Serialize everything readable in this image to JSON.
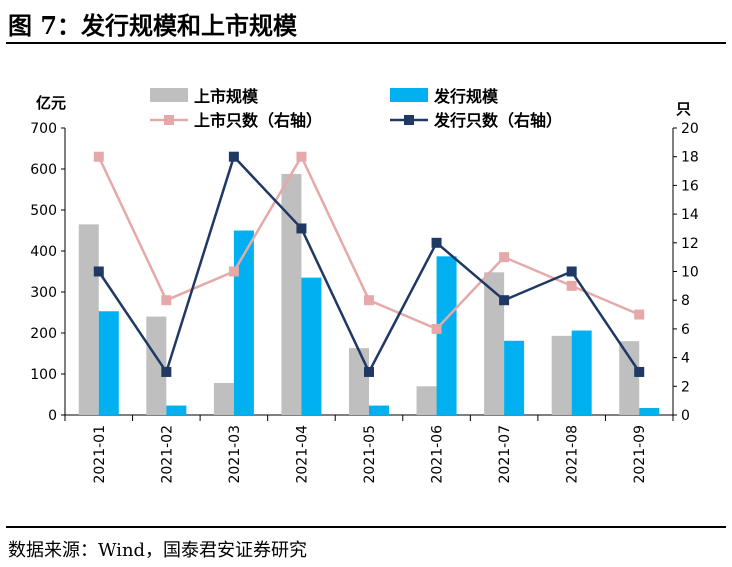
{
  "figure": {
    "title": "图 7：发行规模和上市规模",
    "source": "数据来源：Wind，国泰君安证券研究"
  },
  "chart_data": {
    "type": "bar",
    "categories": [
      "2021-01",
      "2021-02",
      "2021-03",
      "2021-04",
      "2021-05",
      "2021-06",
      "2021-07",
      "2021-08",
      "2021-09"
    ],
    "left_axis": {
      "unit": "亿元",
      "ylim": [
        0,
        700
      ],
      "ticks": [
        0,
        100,
        200,
        300,
        400,
        500,
        600,
        700
      ]
    },
    "right_axis": {
      "unit": "只",
      "ylim": [
        0,
        20
      ],
      "ticks": [
        0,
        2,
        4,
        6,
        8,
        10,
        12,
        14,
        16,
        18,
        20
      ]
    },
    "series": [
      {
        "name": "上市规模",
        "type": "bar",
        "axis": "left",
        "color": "#bfbfbf",
        "values": [
          465,
          240,
          78,
          588,
          163,
          70,
          348,
          193,
          180
        ]
      },
      {
        "name": "发行规模",
        "type": "bar",
        "axis": "left",
        "color": "#00b0f0",
        "values": [
          253,
          23,
          450,
          335,
          23,
          387,
          181,
          206,
          17
        ]
      },
      {
        "name": "上市只数（右轴）",
        "type": "line",
        "axis": "right",
        "color": "#e6a9a9",
        "marker": "square",
        "values": [
          18,
          8,
          10,
          18,
          8,
          6,
          11,
          9,
          7
        ]
      },
      {
        "name": "发行只数（右轴）",
        "type": "line",
        "axis": "right",
        "color": "#1f3864",
        "marker": "square",
        "values": [
          10,
          3,
          18,
          13,
          3,
          12,
          8,
          10,
          3
        ]
      }
    ],
    "legend_position": "top",
    "grid": false
  }
}
